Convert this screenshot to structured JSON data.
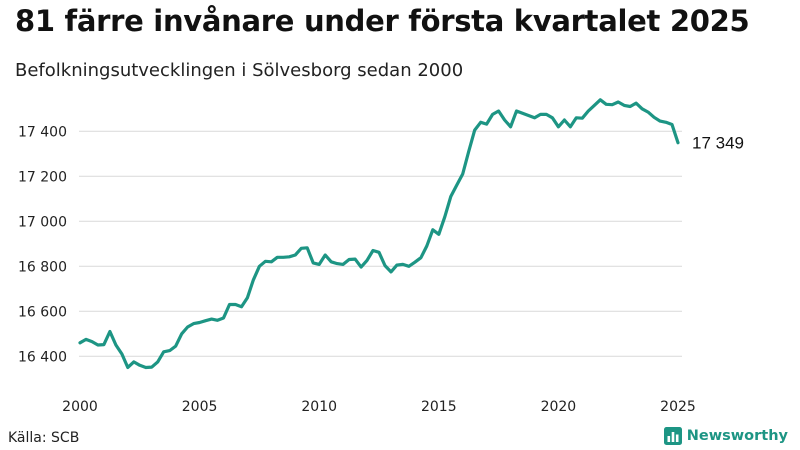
{
  "header": {
    "title": "81 färre invånare under första kvartalet 2025",
    "subtitle": "Befolkningsutvecklingen i Sölvesborg sedan 2000"
  },
  "footer": {
    "source": "Källa: SCB",
    "brand": "Newsworthy"
  },
  "colors": {
    "line": "#1d9584",
    "grid": "#d9d9d9",
    "brand": "#1d9584"
  },
  "icons": {
    "brand_logo": "bar-chart-logo-icon"
  },
  "chart_data": {
    "type": "line",
    "title": "81 färre invånare under första kvartalet 2025",
    "subtitle": "Befolkningsutvecklingen i Sölvesborg sedan 2000",
    "xlabel": "",
    "ylabel": "",
    "xlim": [
      2000,
      2025
    ],
    "ylim": [
      16350,
      17550
    ],
    "grid": true,
    "legend": "none",
    "x_ticks": [
      2000,
      2005,
      2010,
      2015,
      2020,
      2025
    ],
    "x_tick_labels": [
      "2000",
      "2005",
      "2010",
      "2015",
      "2020",
      "2025"
    ],
    "y_ticks": [
      16400,
      16600,
      16800,
      17000,
      17200,
      17400
    ],
    "y_tick_labels": [
      "16 400",
      "16 600",
      "16 800",
      "17 000",
      "17 200",
      "17 400"
    ],
    "end_label": "17 349",
    "series": [
      {
        "x": [
          2000,
          2000.25,
          2000.5,
          2000.75,
          2001,
          2001.25,
          2001.5,
          2001.75,
          2002,
          2002.25,
          2002.5,
          2002.75,
          2003,
          2003.25,
          2003.5,
          2003.75,
          2004,
          2004.25,
          2004.5,
          2004.75,
          2005,
          2005.25,
          2005.5,
          2005.75,
          2006,
          2006.25,
          2006.5,
          2006.75,
          2007,
          2007.25,
          2007.5,
          2007.75,
          2008,
          2008.25,
          2008.5,
          2008.75,
          2009,
          2009.25,
          2009.5,
          2009.75,
          2010,
          2010.25,
          2010.5,
          2010.75,
          2011,
          2011.25,
          2011.5,
          2011.75,
          2012,
          2012.25,
          2012.5,
          2012.75,
          2013,
          2013.25,
          2013.5,
          2013.75,
          2014,
          2014.25,
          2014.5,
          2014.75,
          2015,
          2015.25,
          2015.5,
          2015.75,
          2016,
          2016.25,
          2016.5,
          2016.75,
          2017,
          2017.25,
          2017.5,
          2017.75,
          2018,
          2018.25,
          2018.5,
          2018.75,
          2019,
          2019.25,
          2019.5,
          2019.75,
          2020,
          2020.25,
          2020.5,
          2020.75,
          2021,
          2021.25,
          2021.5,
          2021.75,
          2022,
          2022.25,
          2022.5,
          2022.75,
          2023,
          2023.25,
          2023.5,
          2023.75,
          2024,
          2024.25,
          2024.5,
          2024.75,
          2025
        ],
        "values": [
          16460,
          16475,
          16465,
          16450,
          16452,
          16510,
          16450,
          16410,
          16350,
          16375,
          16360,
          16350,
          16352,
          16375,
          16420,
          16425,
          16445,
          16500,
          16530,
          16545,
          16550,
          16558,
          16565,
          16560,
          16570,
          16630,
          16630,
          16620,
          16660,
          16740,
          16800,
          16822,
          16820,
          16840,
          16840,
          16842,
          16850,
          16880,
          16882,
          16815,
          16808,
          16850,
          16820,
          16812,
          16808,
          16830,
          16832,
          16796,
          16826,
          16870,
          16862,
          16803,
          16775,
          16805,
          16808,
          16800,
          16818,
          16838,
          16890,
          16962,
          16942,
          17020,
          17110,
          17160,
          17210,
          17310,
          17405,
          17440,
          17432,
          17475,
          17490,
          17450,
          17420,
          17490,
          17480,
          17470,
          17460,
          17475,
          17475,
          17460,
          17420,
          17450,
          17420,
          17460,
          17458,
          17490,
          17515,
          17540,
          17520,
          17518,
          17530,
          17515,
          17510,
          17525,
          17500,
          17485,
          17462,
          17445,
          17440,
          17430,
          17349
        ]
      }
    ]
  }
}
